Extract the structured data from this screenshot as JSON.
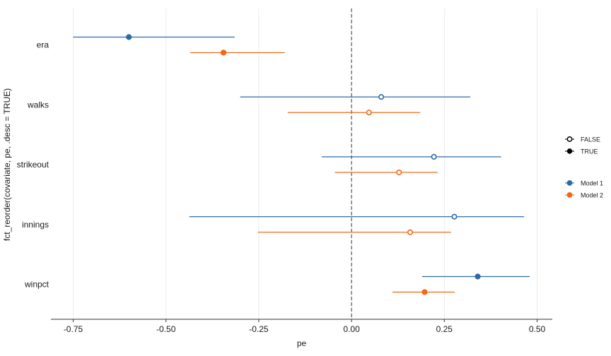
{
  "chart_data": {
    "type": "scatter",
    "subtype": "coefficient-plot-with-intervals",
    "xlabel": "pe",
    "ylabel": "fct_reorder(covariate, pe, .desc = TRUE)",
    "xlim": [
      -0.75,
      0.5
    ],
    "x_ticks": [
      -0.75,
      -0.5,
      -0.25,
      0.0,
      0.25,
      0.5
    ],
    "x_tick_labels": [
      "-0.75",
      "-0.50",
      "-0.25",
      "0.00",
      "0.25",
      "0.50"
    ],
    "categories": [
      "era",
      "walks",
      "strikeout",
      "innings",
      "winpct"
    ],
    "reference_line": 0.0,
    "grid": "vertical-major",
    "colors": {
      "Model 1": "#2c6aa8",
      "Model 2": "#f16913"
    },
    "series": [
      {
        "name": "Model 1",
        "points": [
          {
            "category": "era",
            "pe": -0.6,
            "lower": -0.75,
            "upper": -0.315,
            "significant": "TRUE"
          },
          {
            "category": "walks",
            "pe": 0.08,
            "lower": -0.3,
            "upper": 0.32,
            "significant": "FALSE"
          },
          {
            "category": "strikeout",
            "pe": 0.222,
            "lower": -0.08,
            "upper": 0.403,
            "significant": "FALSE"
          },
          {
            "category": "innings",
            "pe": 0.277,
            "lower": -0.437,
            "upper": 0.465,
            "significant": "FALSE"
          },
          {
            "category": "winpct",
            "pe": 0.34,
            "lower": 0.19,
            "upper": 0.48,
            "significant": "TRUE"
          }
        ]
      },
      {
        "name": "Model 2",
        "points": [
          {
            "category": "era",
            "pe": -0.345,
            "lower": -0.435,
            "upper": -0.18,
            "significant": "TRUE"
          },
          {
            "category": "walks",
            "pe": 0.047,
            "lower": -0.172,
            "upper": 0.185,
            "significant": "FALSE"
          },
          {
            "category": "strikeout",
            "pe": 0.128,
            "lower": -0.045,
            "upper": 0.232,
            "significant": "FALSE"
          },
          {
            "category": "innings",
            "pe": 0.158,
            "lower": -0.252,
            "upper": 0.268,
            "significant": "FALSE"
          },
          {
            "category": "winpct",
            "pe": 0.197,
            "lower": 0.11,
            "upper": 0.278,
            "significant": "TRUE"
          }
        ]
      }
    ],
    "legends": [
      {
        "title": "",
        "entries": [
          "FALSE",
          "TRUE"
        ],
        "kind": "shape"
      },
      {
        "title": "",
        "entries": [
          "Model 1",
          "Model 2"
        ],
        "kind": "color"
      }
    ],
    "legend_position": "right"
  }
}
